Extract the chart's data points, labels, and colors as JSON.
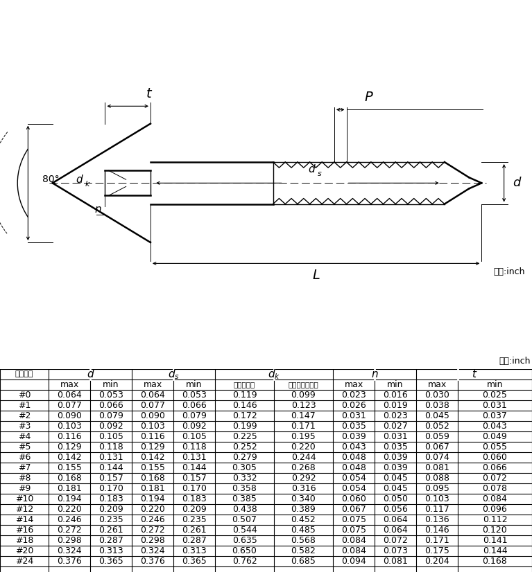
{
  "unit_label": "单位:inch",
  "row_label": "公称直径",
  "sub_labels": [
    "max",
    "min",
    "max",
    "min",
    "最大边平头",
    "最小边圆或沉头",
    "max",
    "min",
    "max",
    "min"
  ],
  "sizes": [
    "#0",
    "#1",
    "#2",
    "#3",
    "#4",
    "#5",
    "#6",
    "#7",
    "#8",
    "#9",
    "#10",
    "#12",
    "#14",
    "#16",
    "#18",
    "#20",
    "#24"
  ],
  "data": [
    [
      0.064,
      0.053,
      0.064,
      0.053,
      0.119,
      0.099,
      0.023,
      0.016,
      0.03,
      0.025
    ],
    [
      0.077,
      0.066,
      0.077,
      0.066,
      0.146,
      0.123,
      0.026,
      0.019,
      0.038,
      0.031
    ],
    [
      0.09,
      0.079,
      0.09,
      0.079,
      0.172,
      0.147,
      0.031,
      0.023,
      0.045,
      0.037
    ],
    [
      0.103,
      0.092,
      0.103,
      0.092,
      0.199,
      0.171,
      0.035,
      0.027,
      0.052,
      0.043
    ],
    [
      0.116,
      0.105,
      0.116,
      0.105,
      0.225,
      0.195,
      0.039,
      0.031,
      0.059,
      0.049
    ],
    [
      0.129,
      0.118,
      0.129,
      0.118,
      0.252,
      0.22,
      0.043,
      0.035,
      0.067,
      0.055
    ],
    [
      0.142,
      0.131,
      0.142,
      0.131,
      0.279,
      0.244,
      0.048,
      0.039,
      0.074,
      0.06
    ],
    [
      0.155,
      0.144,
      0.155,
      0.144,
      0.305,
      0.268,
      0.048,
      0.039,
      0.081,
      0.066
    ],
    [
      0.168,
      0.157,
      0.168,
      0.157,
      0.332,
      0.292,
      0.054,
      0.045,
      0.088,
      0.072
    ],
    [
      0.181,
      0.17,
      0.181,
      0.17,
      0.358,
      0.316,
      0.054,
      0.045,
      0.095,
      0.078
    ],
    [
      0.194,
      0.183,
      0.194,
      0.183,
      0.385,
      0.34,
      0.06,
      0.05,
      0.103,
      0.084
    ],
    [
      0.22,
      0.209,
      0.22,
      0.209,
      0.438,
      0.389,
      0.067,
      0.056,
      0.117,
      0.096
    ],
    [
      0.246,
      0.235,
      0.246,
      0.235,
      0.507,
      0.452,
      0.075,
      0.064,
      0.136,
      0.112
    ],
    [
      0.272,
      0.261,
      0.272,
      0.261,
      0.544,
      0.485,
      0.075,
      0.064,
      0.146,
      0.12
    ],
    [
      0.298,
      0.287,
      0.298,
      0.287,
      0.635,
      0.568,
      0.084,
      0.072,
      0.171,
      0.141
    ],
    [
      0.324,
      0.313,
      0.324,
      0.313,
      0.65,
      0.582,
      0.084,
      0.073,
      0.175,
      0.144
    ],
    [
      0.376,
      0.365,
      0.376,
      0.365,
      0.762,
      0.685,
      0.094,
      0.081,
      0.204,
      0.168
    ]
  ],
  "bg_color": "#ffffff",
  "line_color": "#000000"
}
